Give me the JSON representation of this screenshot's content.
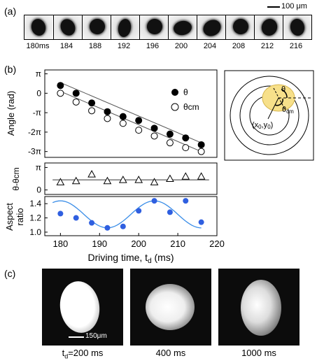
{
  "panel_a": {
    "label": "(a)",
    "scale_bar_label": "100 μm",
    "time_labels": [
      "180ms",
      "184",
      "188",
      "192",
      "196",
      "200",
      "204",
      "208",
      "212",
      "216"
    ]
  },
  "panel_b": {
    "label": "(b)",
    "diagram": {
      "theta_label": "θ",
      "theta_cm_label": "θ",
      "theta_cm_sub": "cm",
      "center_label": "(x",
      "center_sub": "0",
      "center_mid": ",y",
      "center_sub2": "0",
      "center_close": ")"
    }
  },
  "chart_data": [
    {
      "type": "scatter",
      "ylabel": "Angle (rad)",
      "yticks": [
        "π",
        "0",
        "-π",
        "-2π",
        "-3π"
      ],
      "ylim": [
        -3.3,
        1.2
      ],
      "series": [
        {
          "name": "θ",
          "marker": "filled",
          "x": [
            180,
            184,
            188,
            192,
            196,
            200,
            204,
            208,
            212,
            216
          ],
          "y": [
            0.4,
            0.0,
            -0.5,
            -0.95,
            -1.2,
            -1.4,
            -1.8,
            -2.1,
            -2.3,
            -2.65
          ]
        },
        {
          "name": "θcm",
          "marker": "open",
          "x": [
            180,
            184,
            188,
            192,
            196,
            200,
            204,
            208,
            212,
            216
          ],
          "y": [
            0.0,
            -0.45,
            -0.9,
            -1.3,
            -1.55,
            -1.9,
            -2.2,
            -2.55,
            -2.8,
            -3.0
          ]
        }
      ],
      "fit_lines": [
        {
          "from": [
            180,
            0.55
          ],
          "to": [
            216,
            -2.55
          ]
        },
        {
          "from": [
            180,
            0.1
          ],
          "to": [
            216,
            -3.0
          ]
        }
      ],
      "legend": [
        "θ",
        "θcm"
      ],
      "legend_position": "top-right"
    },
    {
      "type": "scatter",
      "ylabel": "θ-θcm",
      "yticks": [
        "π",
        "0"
      ],
      "ylim": [
        -0.2,
        1.2
      ],
      "series": [
        {
          "name": "",
          "marker": "triangle-open",
          "x": [
            180,
            184,
            188,
            192,
            196,
            200,
            204,
            208,
            212,
            216
          ],
          "y": [
            0.35,
            0.4,
            0.7,
            0.4,
            0.45,
            0.45,
            0.35,
            0.5,
            0.6,
            0.6
          ]
        }
      ],
      "fit_lines": [
        {
          "from": [
            178,
            0.45
          ],
          "to": [
            218,
            0.45
          ]
        }
      ]
    },
    {
      "type": "scatter",
      "ylabel": "Aspect ratio",
      "yticks": [
        "1.4",
        "1.2",
        "1.0"
      ],
      "ylim": [
        0.95,
        1.5
      ],
      "xlabel": "Driving time, t",
      "xlabel_sub": "d",
      "xlabel_unit": " (ms)",
      "xticks": [
        "180",
        "190",
        "200",
        "210",
        "220"
      ],
      "xlim": [
        176,
        220
      ],
      "series": [
        {
          "name": "",
          "marker": "filled-blue",
          "x": [
            180,
            184,
            188,
            192,
            196,
            200,
            204,
            208,
            212,
            216
          ],
          "y": [
            1.26,
            1.2,
            1.13,
            1.06,
            1.08,
            1.3,
            1.44,
            1.28,
            1.44,
            1.14
          ]
        }
      ],
      "fit_curve": {
        "type": "cosine",
        "mean": 1.25,
        "amplitude": 0.19,
        "period_ms": 24,
        "min_at_ms": 192
      }
    }
  ],
  "panel_c": {
    "label": "(c)",
    "scale_bar_label": "150μm",
    "captions": [
      {
        "pre": "t",
        "sub": "d",
        "post": "=200 ms"
      },
      {
        "pre": "400 ms",
        "sub": "",
        "post": ""
      },
      {
        "pre": "1000 ms",
        "sub": "",
        "post": ""
      }
    ]
  },
  "colors": {
    "fit_blue": "#3b8ee8",
    "point_blue": "#2f5fe0",
    "highlight_yellow": "#f7e08a"
  }
}
